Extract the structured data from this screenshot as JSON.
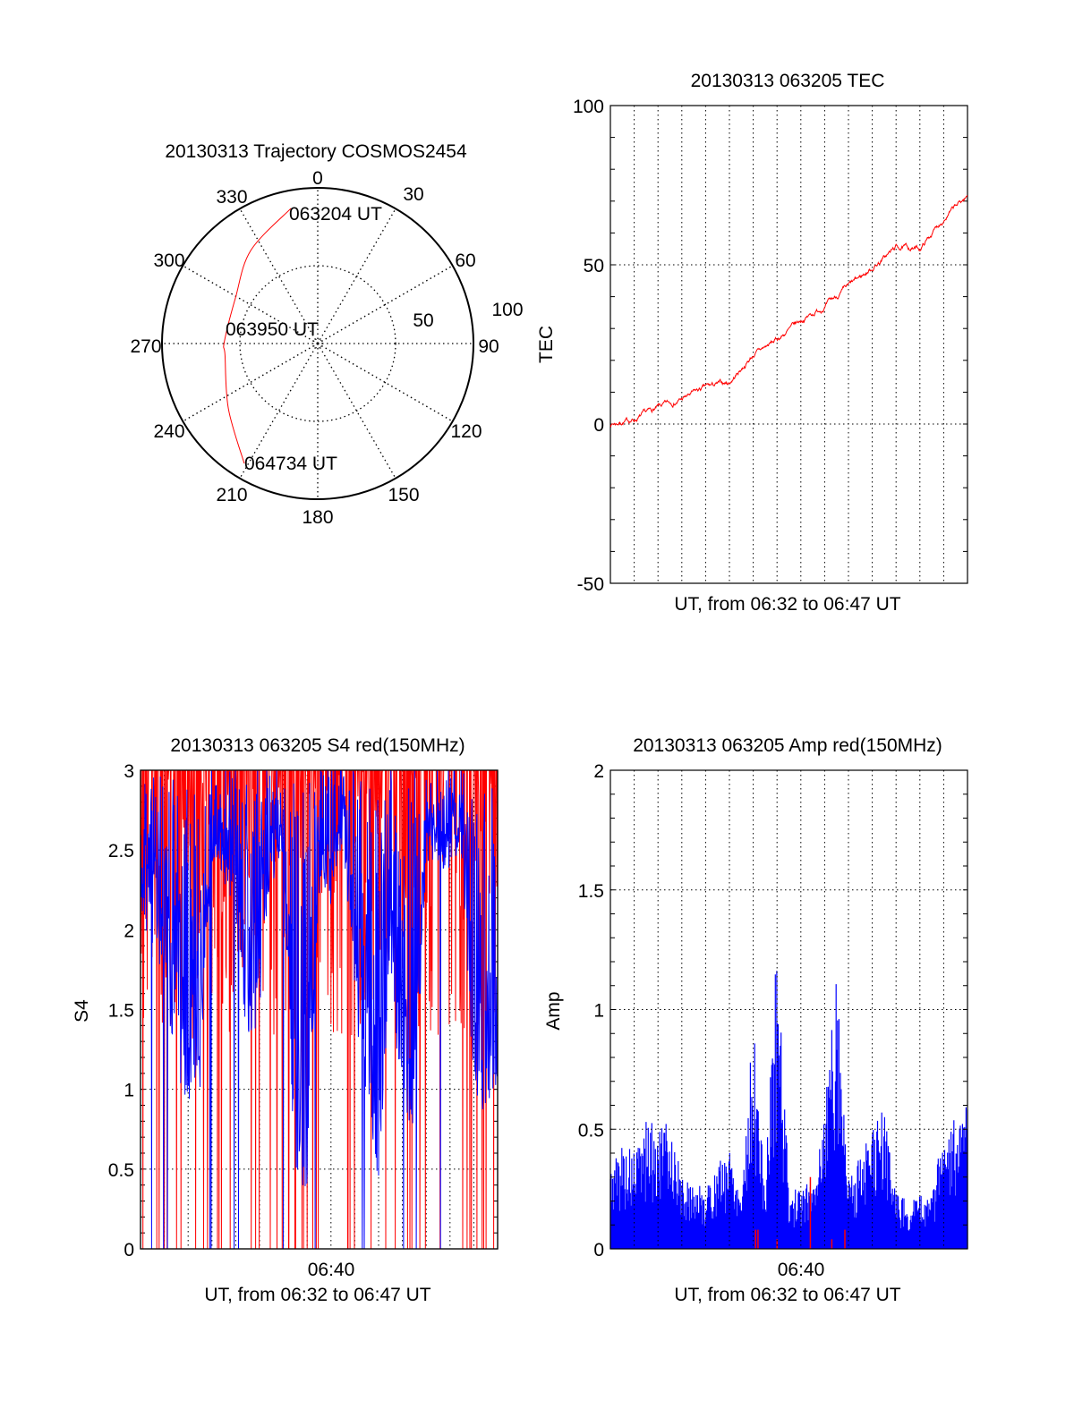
{
  "chart_data": [
    {
      "type": "polar",
      "title": "20130313 Trajectory COSMOS2454",
      "angle_ticks": [
        "0",
        "30",
        "60",
        "90",
        "120",
        "150",
        "180",
        "210",
        "240",
        "270",
        "300",
        "330"
      ],
      "radial_ticks": [
        "50",
        "100"
      ],
      "rlim": [
        0,
        100
      ],
      "trajectory": {
        "color": "#ff0000",
        "azimuth_deg": [
          348.8,
          324.2,
          299.0,
          271.0,
          262.9,
          233.9,
          211.5
        ],
        "zenith": [
          88.5,
          73.6,
          60.4,
          60.0,
          60.0,
          71.0,
          90.3
        ]
      },
      "annotations": [
        "063204 UT",
        "063950 UT",
        "064734 UT"
      ]
    },
    {
      "type": "line",
      "title": "20130313 063205 TEC",
      "xlabel": "UT, from 06:32 to 06:47 UT",
      "ylabel": "TEC",
      "ylim": [
        -50,
        100
      ],
      "yticks": [
        "100",
        "50",
        "0",
        "-50"
      ],
      "x_minutes_from_0632": [
        0,
        1,
        2,
        3,
        4,
        5,
        6,
        7,
        8,
        9,
        10,
        11,
        12,
        13,
        14,
        15
      ],
      "series": [
        {
          "name": "TEC",
          "color": "#ff0000",
          "values": [
            0,
            1.4,
            5,
            7.8,
            11.5,
            13,
            21.7,
            26.5,
            32.4,
            37,
            43,
            49,
            55.5,
            55,
            64.6,
            71.5
          ]
        }
      ]
    },
    {
      "type": "line",
      "title": "20130313 063205 S4 red(150MHz)",
      "xlabel": "UT, from 06:32 to 06:47 UT",
      "ylabel": "S4",
      "ylim": [
        0,
        3
      ],
      "yticks": [
        "3",
        "2.5",
        "2",
        "1.5",
        "1",
        "0.5",
        "0"
      ],
      "xticks": [
        "06:40"
      ],
      "x_step_minutes": 0.5,
      "series": [
        {
          "name": "S4 blue",
          "color": "#0000ff",
          "lower_envelope": [
            2.2,
            2.0,
            1.8,
            1.1,
            1.05,
            1.1,
            2.5,
            2.4,
            2.2,
            1.3,
            1.6,
            2.4,
            2.4,
            0.5,
            0.5,
            2.3,
            2.2,
            2.6,
            1.7,
            0.8,
            0.5,
            1.8,
            1.0,
            0.7,
            2.5,
            2.5,
            2.4,
            2.6,
            0.95,
            0.95,
            1.0
          ]
        },
        {
          "name": "S4 red",
          "color": "#ff0000",
          "saturated_value": 3
        }
      ]
    },
    {
      "type": "bar",
      "title": "20130313 063205 Amp red(150MHz)",
      "xlabel": "UT, from 06:32 to 06:47 UT",
      "ylabel": "Amp",
      "ylim": [
        0,
        2
      ],
      "yticks": [
        "2",
        "1.5",
        "1",
        "0.5",
        "0"
      ],
      "xticks": [
        "06:40"
      ],
      "x_step_minutes": 0.5,
      "series": [
        {
          "name": "Amp blue",
          "color": "#0000ff",
          "upper_envelope": [
            0.35,
            0.45,
            0.4,
            0.55,
            0.5,
            0.55,
            0.3,
            0.28,
            0.25,
            0.35,
            0.45,
            0.25,
            0.95,
            0.25,
            1.35,
            0.25,
            0.25,
            0.3,
            0.6,
            1.25,
            0.3,
            0.4,
            0.5,
            0.6,
            0.25,
            0.2,
            0.22,
            0.25,
            0.5,
            0.55,
            0.6
          ]
        },
        {
          "name": "Amp red",
          "color": "#ff0000",
          "spikes_minutes": [
            6.1,
            6.2,
            7.0,
            8.4,
            9.3,
            9.85
          ],
          "spike_values": [
            0.08,
            0.08,
            0.04,
            0.3,
            0.04,
            0.08
          ]
        }
      ]
    }
  ]
}
